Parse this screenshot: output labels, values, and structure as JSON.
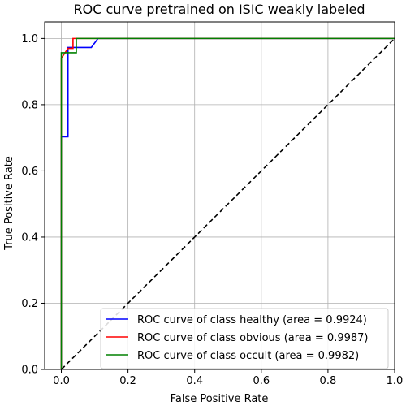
{
  "chart_data": {
    "type": "line",
    "title": "ROC curve pretrained on ISIC weakly labeled",
    "xlabel": "False Positive Rate",
    "ylabel": "True Positive Rate",
    "xlim": [
      -0.05,
      1.0
    ],
    "ylim": [
      0.0,
      1.05
    ],
    "xticks": [
      0.0,
      0.2,
      0.4,
      0.6,
      0.8,
      1.0
    ],
    "yticks": [
      0.0,
      0.2,
      0.4,
      0.6,
      0.8,
      1.0
    ],
    "xtick_labels": [
      "0.0",
      "0.2",
      "0.4",
      "0.6",
      "0.8",
      "1.0"
    ],
    "ytick_labels": [
      "0.0",
      "0.2",
      "0.4",
      "0.6",
      "0.8",
      "1.0"
    ],
    "grid": true,
    "legend_position": "lower-right",
    "series": [
      {
        "name": "ROC curve of class healthy (area = 0.9924)",
        "color": "#0000ff",
        "style": "solid",
        "x": [
          0.0,
          0.0,
          0.02,
          0.02,
          0.04,
          0.04,
          0.09,
          0.11,
          1.0
        ],
        "y": [
          0.0,
          0.703,
          0.703,
          0.973,
          0.973,
          0.973,
          0.973,
          1.0,
          1.0
        ]
      },
      {
        "name": "ROC curve of class obvious (area = 0.9987)",
        "color": "#ff0000",
        "style": "solid",
        "x": [
          0.0,
          0.0,
          0.01,
          0.02,
          0.035,
          0.035,
          1.0
        ],
        "y": [
          0.0,
          0.94,
          0.955,
          0.97,
          0.97,
          1.0,
          1.0
        ]
      },
      {
        "name": "ROC curve of class occult (area = 0.9982)",
        "color": "#008000",
        "style": "solid",
        "x": [
          0.0,
          0.0,
          0.02,
          0.02,
          0.045,
          0.045,
          1.0
        ],
        "y": [
          0.0,
          0.957,
          0.957,
          0.957,
          0.957,
          1.0,
          1.0
        ]
      },
      {
        "name": "",
        "color": "#000000",
        "style": "dashed",
        "x": [
          0.0,
          1.0
        ],
        "y": [
          0.0,
          1.0
        ]
      }
    ]
  }
}
